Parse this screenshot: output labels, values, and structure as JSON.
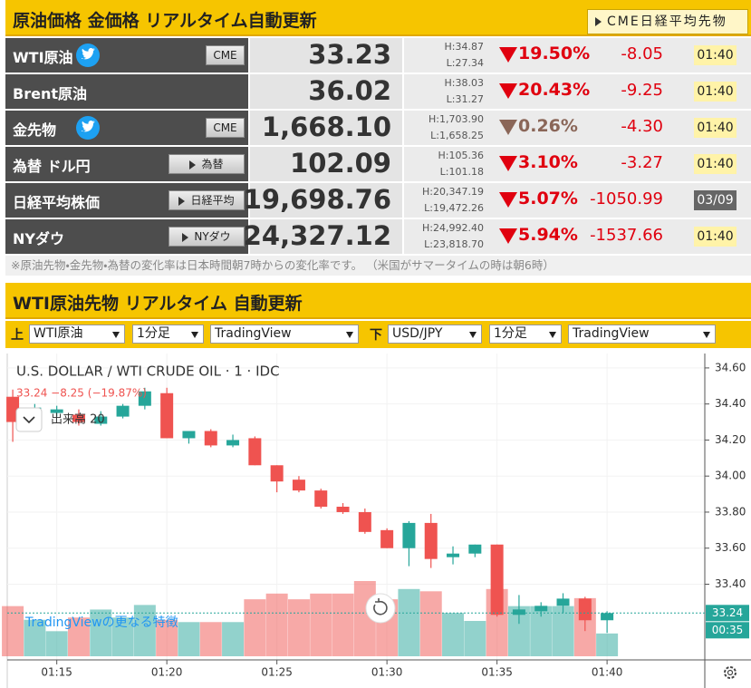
{
  "header": {
    "title": "原油価格 金価格 リアルタイム自動更新",
    "link": "CME日経平均先物"
  },
  "table": {
    "rows": [
      {
        "name": "WTI原油",
        "twitter": true,
        "button": "CME",
        "button_arrow": false,
        "price": "33.23",
        "high": "H:34.87",
        "low": "L:27.34",
        "change": "19.50%",
        "arrow_color": "#e0000f",
        "diff": "-8.05",
        "time": "01:40",
        "time_bg": "#fff3a8",
        "time_color": "#222"
      },
      {
        "name": "Brent原油",
        "twitter": false,
        "price": "36.02",
        "high": "H:38.03",
        "low": "L:31.27",
        "change": "20.43%",
        "arrow_color": "#e0000f",
        "diff": "-9.25",
        "time": "01:40",
        "time_bg": "#fff3a8",
        "time_color": "#222"
      },
      {
        "name": "金先物",
        "twitter": true,
        "button": "CME",
        "button_arrow": false,
        "price": "1,668.10",
        "high": "H:1,703.90",
        "low": "L:1,658.25",
        "change": "0.26%",
        "arrow_color": "#8a6658",
        "diff": "-4.30",
        "time": "01:40",
        "time_bg": "#fff3a8",
        "time_color": "#222"
      },
      {
        "name": "為替 ドル円",
        "twitter": false,
        "button": "為替",
        "button_arrow": true,
        "price": "102.09",
        "high": "H:105.36",
        "low": "L:101.18",
        "change": "3.10%",
        "arrow_color": "#e0000f",
        "diff": "-3.27",
        "time": "01:40",
        "time_bg": "#fff3a8",
        "time_color": "#222"
      },
      {
        "name": "日経平均株価",
        "twitter": false,
        "button": "日経平均",
        "button_arrow": true,
        "price": "19,698.76",
        "high": "H:20,347.19",
        "low": "L:19,472.26",
        "change": "5.07%",
        "arrow_color": "#e0000f",
        "diff": "-1050.99",
        "time": "03/09",
        "time_bg": "#666666",
        "time_color": "#fff"
      },
      {
        "name": "NYダウ",
        "twitter": false,
        "button": "NYダウ",
        "button_arrow": true,
        "price": "24,327.12",
        "high": "H:24,992.40",
        "low": "L:23,818.70",
        "change": "5.94%",
        "arrow_color": "#e0000f",
        "diff": "-1537.66",
        "time": "01:40",
        "time_bg": "#fff3a8",
        "time_color": "#222"
      }
    ]
  },
  "note": "※原油先物・金先物・為替の変化率は日本時間朝7時からの変化率です。 （米国がサマータイムの時は朝6時）",
  "section_title": "WTI原油先物 リアルタイム 自動更新",
  "toolbar": {
    "upper_label": "上",
    "upper": [
      "WTI原油",
      "1分足",
      "TradingView"
    ],
    "lower_label": "下",
    "lower": [
      "USD/JPY",
      "1分足",
      "TradingView"
    ]
  },
  "chart_data": {
    "type": "candlestick",
    "title": "U.S. DOLLAR / WTI CRUDE OIL · 1 · IDC",
    "status": "33.24  −8.25 (−19.87%)",
    "volume_label": "出来高 20",
    "promo": "TradingViewの更なる特徴",
    "x": [
      13,
      14,
      15,
      16,
      17,
      18,
      19,
      20,
      21,
      22,
      23,
      24,
      25,
      26,
      27,
      28,
      29,
      30,
      31,
      32,
      33,
      34,
      35,
      36,
      37,
      38,
      39,
      40
    ],
    "open": [
      34.44,
      34.33,
      34.35,
      34.34,
      34.29,
      34.33,
      34.39,
      34.46,
      34.21,
      34.25,
      34.17,
      34.21,
      34.06,
      33.98,
      33.92,
      33.83,
      33.8,
      33.7,
      33.6,
      33.74,
      33.55,
      33.57,
      33.62,
      33.23,
      33.25,
      33.28,
      33.32,
      33.2
    ],
    "high": [
      34.48,
      34.4,
      34.39,
      34.37,
      34.36,
      34.4,
      34.49,
      34.49,
      34.25,
      34.26,
      34.23,
      34.22,
      34.06,
      34.0,
      33.93,
      33.85,
      33.82,
      33.71,
      33.75,
      33.79,
      33.61,
      33.62,
      33.62,
      33.34,
      33.3,
      33.35,
      33.33,
      33.25
    ],
    "low": [
      34.19,
      34.3,
      34.33,
      34.28,
      34.28,
      34.32,
      34.37,
      34.21,
      34.18,
      34.16,
      34.16,
      34.06,
      33.91,
      33.91,
      33.82,
      33.79,
      33.68,
      33.6,
      33.5,
      33.49,
      33.51,
      33.55,
      33.22,
      33.18,
      33.22,
      33.24,
      33.14,
      33.13
    ],
    "close": [
      34.3,
      34.38,
      34.37,
      34.3,
      34.33,
      34.39,
      34.47,
      34.21,
      34.25,
      34.17,
      34.2,
      34.06,
      33.97,
      33.92,
      33.83,
      33.8,
      33.69,
      33.6,
      33.74,
      33.54,
      33.57,
      33.62,
      33.23,
      33.26,
      33.28,
      33.32,
      33.2,
      33.24
    ],
    "volume": [
      44,
      32,
      22,
      34,
      41,
      34,
      45,
      32,
      30,
      30,
      30,
      50,
      55,
      50,
      55,
      55,
      66,
      50,
      59,
      57,
      38,
      31,
      59,
      44,
      44,
      44,
      51,
      20
    ],
    "up_color": "#26a69a",
    "down_color": "#ef5350",
    "xlim": [
      12.75,
      44.44
    ],
    "xticks": [
      {
        "value": 15,
        "label": "01:15"
      },
      {
        "value": 20,
        "label": "01:20"
      },
      {
        "value": 25,
        "label": "01:25"
      },
      {
        "value": 30,
        "label": "01:30"
      },
      {
        "value": 35,
        "label": "01:35"
      },
      {
        "value": 40,
        "label": "01:40"
      }
    ],
    "ylim": [
      32.98,
      34.68
    ],
    "yticks": [
      {
        "value": 34.6,
        "label": "34.60"
      },
      {
        "value": 34.4,
        "label": "34.40"
      },
      {
        "value": 34.2,
        "label": "34.20"
      },
      {
        "value": 34,
        "label": "34.00"
      },
      {
        "value": 33.8,
        "label": "33.80"
      },
      {
        "value": 33.6,
        "label": "33.60"
      },
      {
        "value": 33.4,
        "label": "33.40"
      }
    ],
    "last": 33.24,
    "countdown": "00:35",
    "grid": true
  }
}
